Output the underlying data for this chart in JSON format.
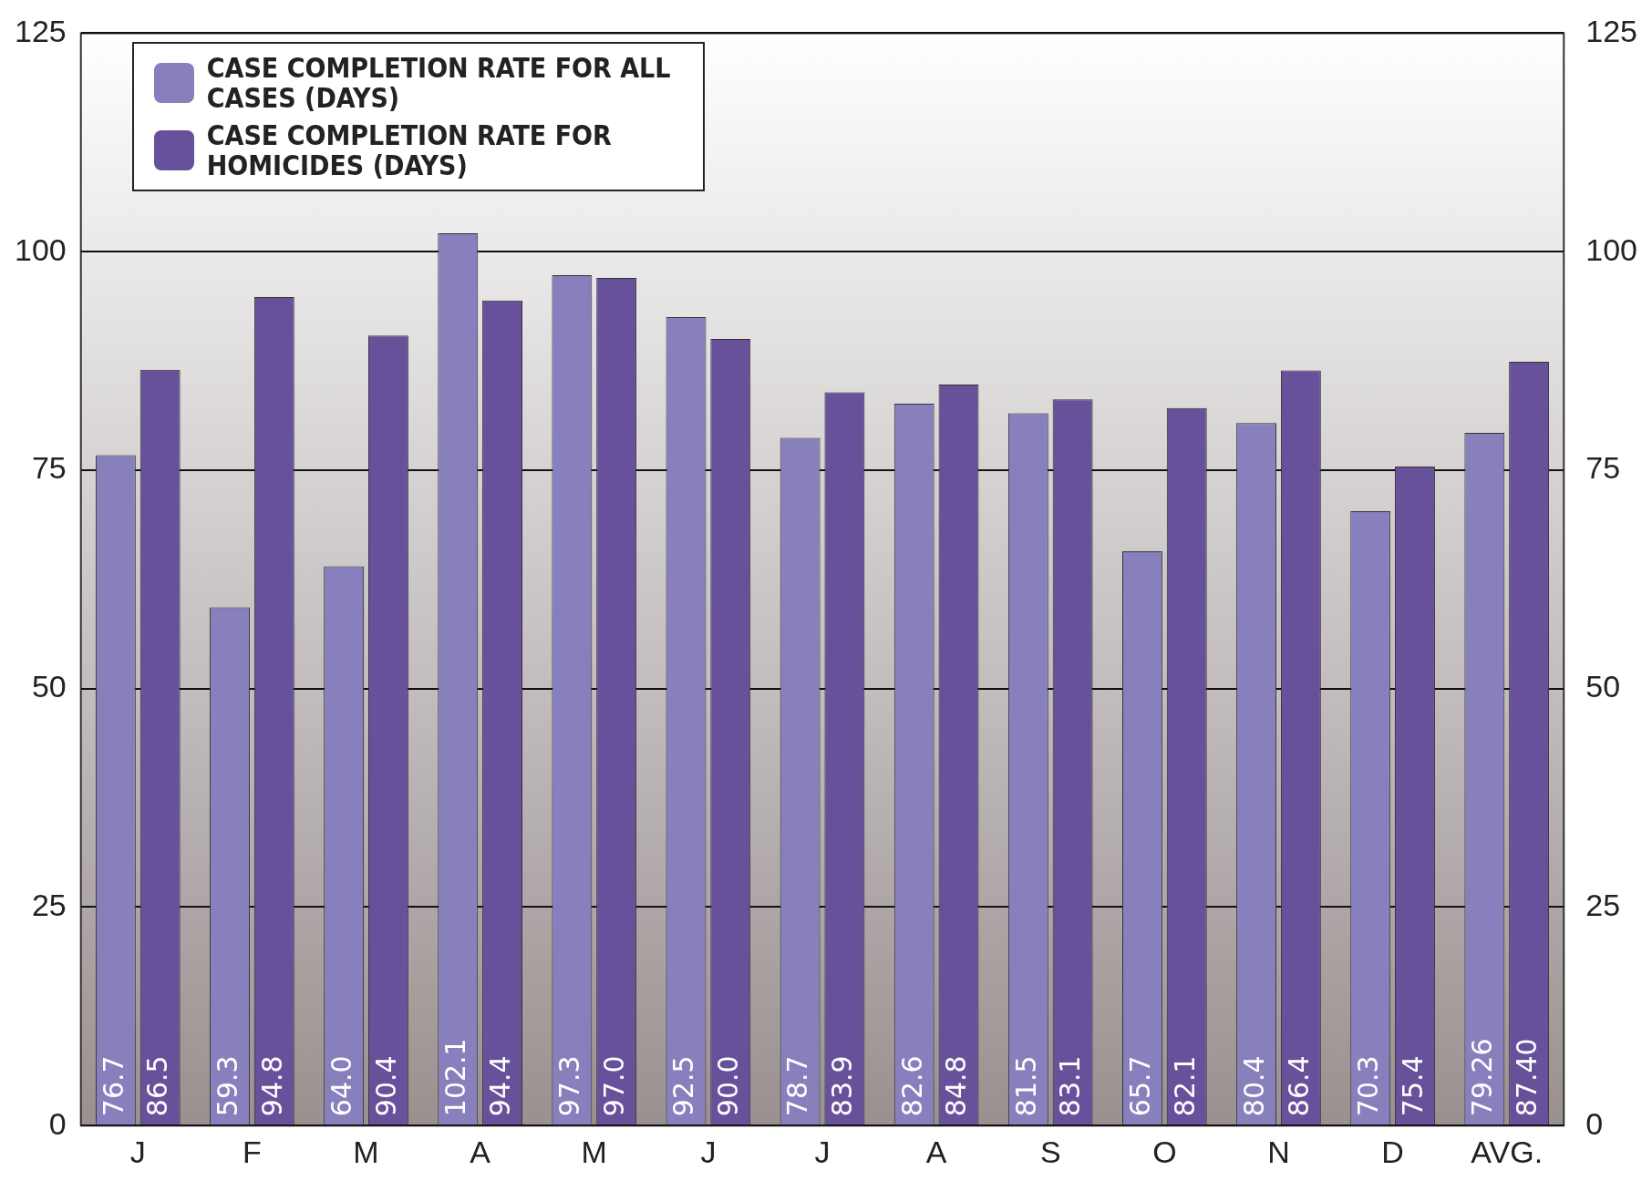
{
  "chart_data": {
    "type": "bar",
    "categories": [
      "J",
      "F",
      "M",
      "A",
      "M",
      "J",
      "J",
      "A",
      "S",
      "O",
      "N",
      "D",
      "AVG."
    ],
    "series": [
      {
        "name": "CASE COMPLETION RATE FOR ALL CASES (DAYS)",
        "color": "#8880bd",
        "values": [
          76.7,
          59.3,
          64,
          102.1,
          97.3,
          92.5,
          78.7,
          82.6,
          81.5,
          65.7,
          80.4,
          70.3,
          79.26
        ],
        "value_labels": [
          "76.7",
          "59.3",
          "64.0",
          "102.1",
          "97.3",
          "92.5",
          "78.7",
          "82.6",
          "81.5",
          "65.7",
          "80.4",
          "70.3",
          "79.26"
        ]
      },
      {
        "name": "CASE COMPLETION RATE FOR HOMICIDES (DAYS)",
        "color": "#67519b",
        "values": [
          86.5,
          94.8,
          90.4,
          94.4,
          97,
          90,
          83.9,
          84.8,
          83.1,
          82.1,
          86.4,
          75.4,
          87.4
        ],
        "value_labels": [
          "86.5",
          "94.8",
          "90.4",
          "94.4",
          "97.0",
          "90.0",
          "83.9",
          "84.8",
          "83.1",
          "82.1",
          "86.4",
          "75.4",
          "87.40"
        ]
      }
    ],
    "ylim": [
      0,
      125
    ],
    "yticks": [
      0,
      25,
      50,
      75,
      100,
      125
    ],
    "y2lim": [
      0,
      125
    ],
    "y2ticks": [
      0,
      25,
      50,
      75,
      100,
      125
    ],
    "grid": "y",
    "legend": "top left"
  }
}
